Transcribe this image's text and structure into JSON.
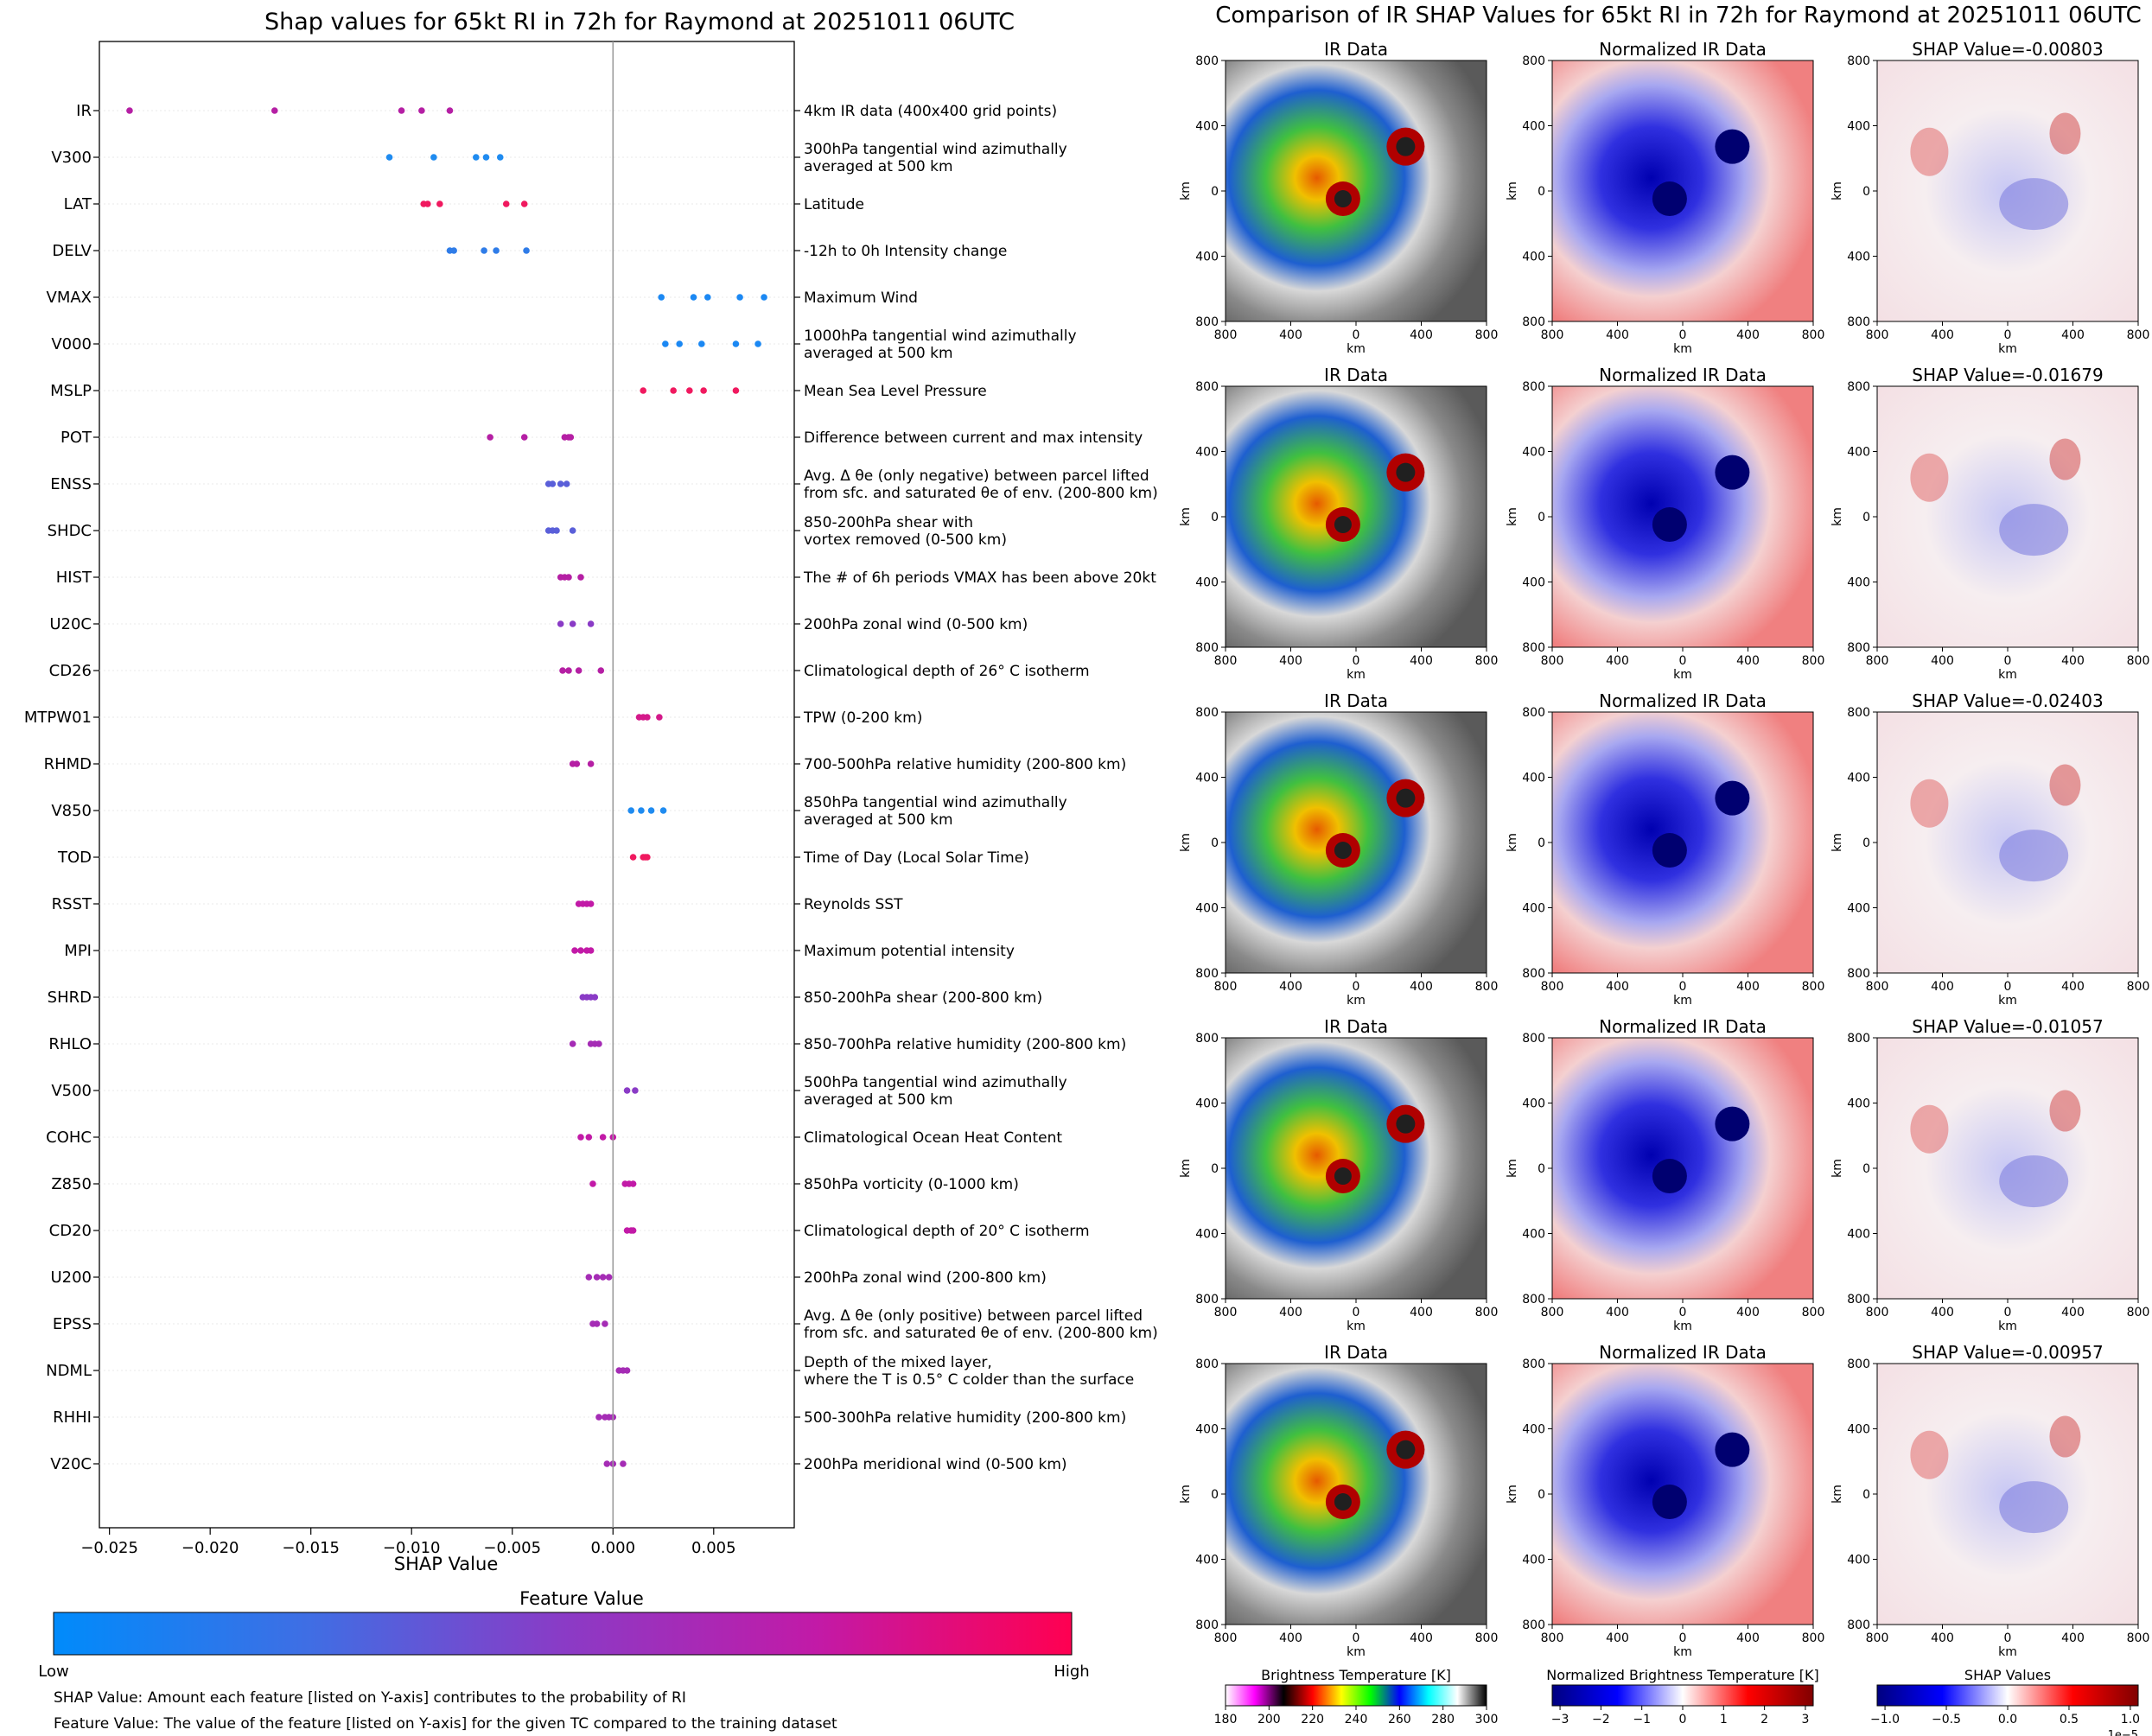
{
  "left_title": "Shap values for 65kt RI in 72h for Raymond at 20251011 06UTC",
  "right_title": "Comparison of IR SHAP Values for 65kt RI in 72h for Raymond at 20251011 06UTC",
  "colorbar": {
    "title": "Feature Value",
    "low_label": "Low",
    "high_label": "High",
    "colors": [
      "#008bfb",
      "#3f6ee4",
      "#8a3bc6",
      "#c21aa7",
      "#ff0051"
    ]
  },
  "notes": [
    "SHAP Value: Amount each feature [listed on Y-axis] contributes to the probability of RI",
    "Feature Value: The value of the feature [listed on Y-axis] for the given TC compared to the training dataset"
  ],
  "chart_data": [
    {
      "type": "scatter",
      "title": "Shap values for 65kt RI in 72h for Raymond at 20251011 06UTC",
      "xlabel": "SHAP Value",
      "xlim": [
        -0.0255,
        0.009
      ],
      "xticks": [
        -0.025,
        -0.02,
        -0.015,
        -0.01,
        -0.005,
        0.0,
        0.005
      ],
      "xtick_labels": [
        "−0.025",
        "−0.020",
        "−0.015",
        "−0.010",
        "−0.005",
        "0.000",
        "0.005"
      ],
      "features": [
        {
          "name": "IR",
          "desc": [
            "4km IR data (400x400 grid points)"
          ],
          "color": "#b51fa4",
          "values": [
            -0.024,
            -0.0168,
            -0.0105,
            -0.0095,
            -0.0081
          ]
        },
        {
          "name": "V300",
          "desc": [
            "300hPa tangential wind azimuthally",
            "averaged at 500 km"
          ],
          "color": "#1f8bf0",
          "values": [
            -0.0111,
            -0.0089,
            -0.0068,
            -0.0063,
            -0.0056
          ]
        },
        {
          "name": "LAT",
          "desc": [
            "Latitude"
          ],
          "color": "#f0195f",
          "values": [
            -0.0094,
            -0.0092,
            -0.0086,
            -0.0053,
            -0.0044
          ]
        },
        {
          "name": "DELV",
          "desc": [
            "-12h to 0h Intensity change"
          ],
          "color": "#2f7ce8",
          "values": [
            -0.0081,
            -0.0079,
            -0.0064,
            -0.0058,
            -0.0043
          ]
        },
        {
          "name": "VMAX",
          "desc": [
            "Maximum Wind"
          ],
          "color": "#1b88f3",
          "values": [
            0.0024,
            0.004,
            0.0047,
            0.0063,
            0.0075
          ]
        },
        {
          "name": "V000",
          "desc": [
            "1000hPa tangential wind azimuthally",
            "averaged at 500 km"
          ],
          "color": "#1b88f3",
          "values": [
            0.0026,
            0.0033,
            0.0044,
            0.0061,
            0.0072
          ]
        },
        {
          "name": "MSLP",
          "desc": [
            "Mean Sea Level Pressure"
          ],
          "color": "#f0195f",
          "values": [
            0.0015,
            0.003,
            0.0038,
            0.0045,
            0.0061
          ]
        },
        {
          "name": "POT",
          "desc": [
            "Difference between current and max intensity"
          ],
          "color": "#b51fa4",
          "values": [
            -0.0061,
            -0.0044,
            -0.0024,
            -0.0022,
            -0.0021
          ]
        },
        {
          "name": "ENSS",
          "desc": [
            "Avg. Δ θe (only negative) between parcel lifted",
            "from sfc. and saturated θe of env. (200-800 km)"
          ],
          "color": "#5a5fd9",
          "values": [
            -0.0032,
            -0.003,
            -0.0026,
            -0.0023
          ]
        },
        {
          "name": "SHDC",
          "desc": [
            "850-200hPa shear with",
            "vortex removed (0-500 km)"
          ],
          "color": "#5a5fd9",
          "values": [
            -0.0032,
            -0.003,
            -0.0028,
            -0.002
          ]
        },
        {
          "name": "HIST",
          "desc": [
            "The # of 6h periods VMAX has been above 20kt"
          ],
          "color": "#b51fa4",
          "values": [
            -0.0026,
            -0.0024,
            -0.0022,
            -0.0016
          ]
        },
        {
          "name": "U20C",
          "desc": [
            "200hPa zonal wind (0-500 km)"
          ],
          "color": "#8a3bc6",
          "values": [
            -0.0026,
            -0.002,
            -0.0011
          ]
        },
        {
          "name": "CD26",
          "desc": [
            "Climatological depth of 26° C isotherm"
          ],
          "color": "#b51fa4",
          "values": [
            -0.0025,
            -0.0022,
            -0.0017,
            -0.0006
          ]
        },
        {
          "name": "MTPW01",
          "desc": [
            "TPW (0-200 km)"
          ],
          "color": "#d4198a",
          "values": [
            0.0013,
            0.0015,
            0.0017,
            0.0023
          ]
        },
        {
          "name": "RHMD",
          "desc": [
            "700-500hPa relative humidity (200-800 km)"
          ],
          "color": "#b51fa4",
          "values": [
            -0.002,
            -0.0018,
            -0.0011
          ]
        },
        {
          "name": "V850",
          "desc": [
            "850hPa tangential wind azimuthally",
            "averaged at 500 km"
          ],
          "color": "#1f8bf0",
          "values": [
            0.0009,
            0.0014,
            0.0019,
            0.0025
          ]
        },
        {
          "name": "TOD",
          "desc": [
            "Time of Day (Local Solar Time)"
          ],
          "color": "#f0195f",
          "values": [
            0.001,
            0.0015,
            0.0016,
            0.0017
          ]
        },
        {
          "name": "RSST",
          "desc": [
            "Reynolds SST"
          ],
          "color": "#c21aa7",
          "values": [
            -0.0017,
            -0.0015,
            -0.0013,
            -0.0011
          ]
        },
        {
          "name": "MPI",
          "desc": [
            "Maximum potential intensity"
          ],
          "color": "#c21aa7",
          "values": [
            -0.0019,
            -0.0016,
            -0.0013,
            -0.0011
          ]
        },
        {
          "name": "SHRD",
          "desc": [
            "850-200hPa shear (200-800 km)"
          ],
          "color": "#8a3bc6",
          "values": [
            -0.0015,
            -0.0013,
            -0.0011,
            -0.0009
          ]
        },
        {
          "name": "RHLO",
          "desc": [
            "850-700hPa relative humidity (200-800 km)"
          ],
          "color": "#a52cb5",
          "values": [
            -0.002,
            -0.0011,
            -0.0009,
            -0.0007
          ]
        },
        {
          "name": "V500",
          "desc": [
            "500hPa tangential wind azimuthally",
            "averaged at 500 km"
          ],
          "color": "#8a3bc6",
          "values": [
            0.0007,
            0.0011
          ]
        },
        {
          "name": "COHC",
          "desc": [
            "Climatological Ocean Heat Content"
          ],
          "color": "#c21aa7",
          "values": [
            -0.0016,
            -0.0012,
            -0.0005,
            0.0
          ]
        },
        {
          "name": "Z850",
          "desc": [
            "850hPa vorticity (0-1000 km)"
          ],
          "color": "#c21aa7",
          "values": [
            -0.001,
            0.0006,
            0.0008,
            0.001
          ]
        },
        {
          "name": "CD20",
          "desc": [
            "Climatological depth of 20° C isotherm"
          ],
          "color": "#c21aa7",
          "values": [
            0.0007,
            0.0009,
            0.001
          ]
        },
        {
          "name": "U200",
          "desc": [
            "200hPa zonal wind (200-800 km)"
          ],
          "color": "#a52cb5",
          "values": [
            -0.0012,
            -0.0008,
            -0.0005,
            -0.0002
          ]
        },
        {
          "name": "EPSS",
          "desc": [
            "Avg. Δ θe (only positive) between parcel lifted",
            "from sfc. and saturated θe of env. (200-800 km)"
          ],
          "color": "#a52cb5",
          "values": [
            -0.001,
            -0.0008,
            -0.0004
          ]
        },
        {
          "name": "NDML",
          "desc": [
            "Depth of the mixed layer,",
            "where the T is 0.5° C colder than the surface"
          ],
          "color": "#a52cb5",
          "values": [
            0.0003,
            0.0005,
            0.0007
          ]
        },
        {
          "name": "RHHI",
          "desc": [
            "500-300hPa relative humidity (200-800 km)"
          ],
          "color": "#a52cb5",
          "values": [
            -0.0007,
            -0.0004,
            -0.0002,
            0.0
          ]
        },
        {
          "name": "V20C",
          "desc": [
            "200hPa meridional wind (0-500 km)"
          ],
          "color": "#a52cb5",
          "values": [
            -0.0003,
            0.0,
            0.0005
          ]
        }
      ]
    },
    {
      "type": "heatmap",
      "panel_titles": [
        "IR Data",
        "Normalized IR Data"
      ],
      "shap_titles": [
        "SHAP Value=-0.00803",
        "SHAP Value=-0.01679",
        "SHAP Value=-0.02403",
        "SHAP Value=-0.01057",
        "SHAP Value=-0.00957"
      ],
      "axis_label": "km",
      "tick_labels": [
        "800",
        "400",
        "0",
        "400",
        "800"
      ],
      "colorbars": [
        {
          "title": "Brightness Temperature [K]",
          "ticks": [
            "180",
            "200",
            "220",
            "240",
            "260",
            "280",
            "300"
          ],
          "colors": [
            "#ffffff",
            "#ff00ff",
            "#000000",
            "#ff0000",
            "#ffff00",
            "#00ff00",
            "#0000ff",
            "#00ffff",
            "#ffffff",
            "#000000"
          ]
        },
        {
          "title": "Normalized Brightness Temperature [K]",
          "ticks": [
            "−3",
            "−2",
            "−1",
            "0",
            "1",
            "2",
            "3"
          ],
          "colors": [
            "#000080",
            "#0000ff",
            "#ffffff",
            "#ff0000",
            "#800000"
          ]
        },
        {
          "title": "SHAP Values",
          "ticks": [
            "−1.0",
            "−0.5",
            "0.0",
            "0.5",
            "1.0"
          ],
          "offset": "1e−5",
          "colors": [
            "#000080",
            "#0000ff",
            "#ffffff",
            "#ff0000",
            "#800000"
          ]
        }
      ]
    }
  ]
}
